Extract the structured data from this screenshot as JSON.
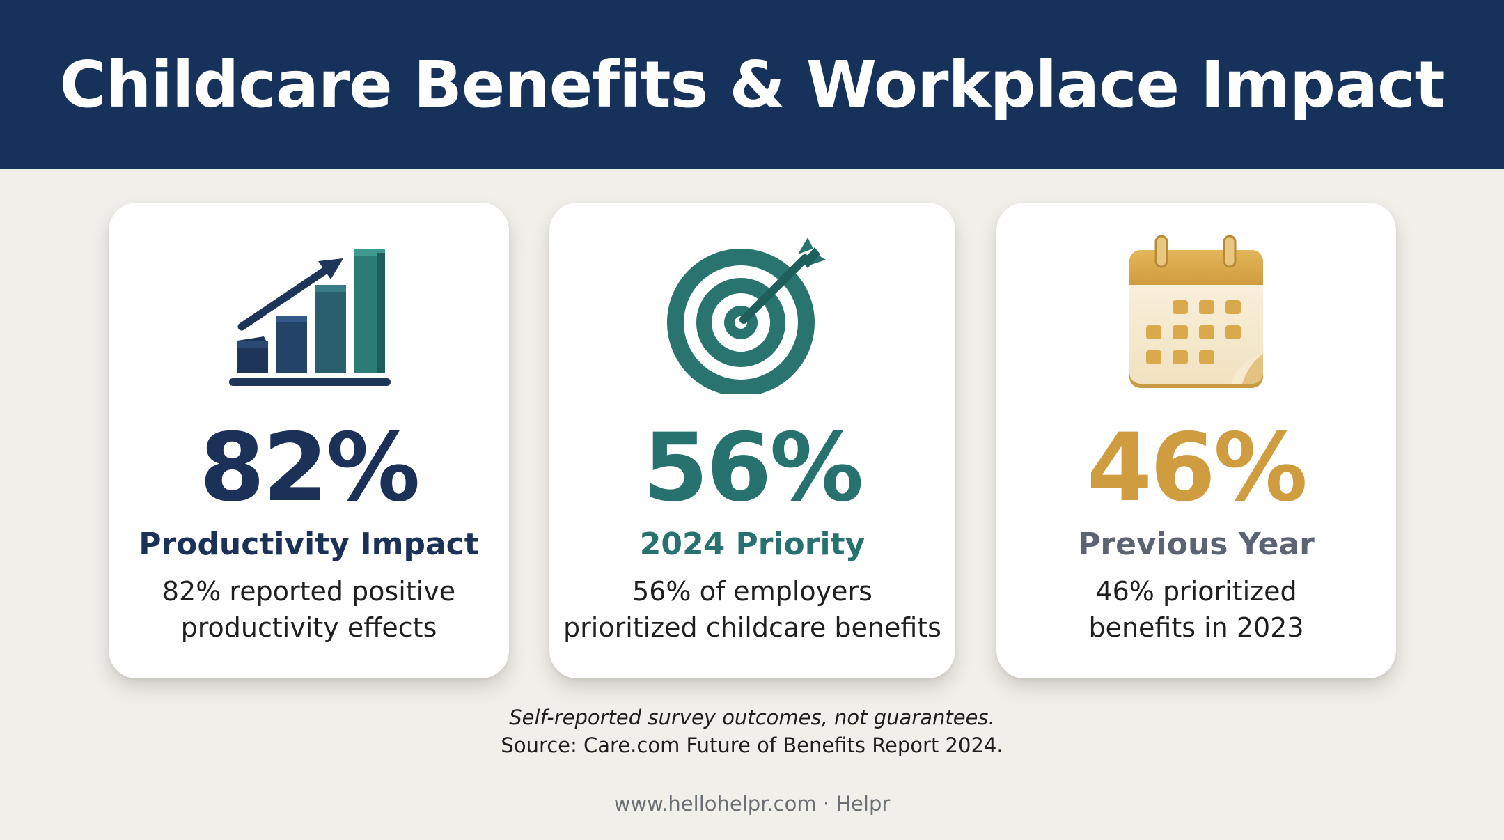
{
  "header": {
    "title": "Childcare Benefits & Workplace Impact"
  },
  "colors": {
    "header_bg": "#17325a",
    "navy": "#1c3157",
    "teal": "#27716e",
    "gold": "#cf9c3f",
    "slate": "#5c6473",
    "page_bg": "#f1efea"
  },
  "cards": [
    {
      "icon": "bar-chart-arrow-icon",
      "stat": "82%",
      "title": "Productivity Impact",
      "desc_line1": "82% reported positive",
      "desc_line2": "productivity effects"
    },
    {
      "icon": "target-arrow-icon",
      "stat": "56%",
      "title": "2024 Priority",
      "desc_line1": "56% of employers",
      "desc_line2": "prioritized childcare benefits"
    },
    {
      "icon": "calendar-icon",
      "stat": "46%",
      "title": "Previous Year",
      "desc_line1": "46% prioritized",
      "desc_line2": "benefits in 2023"
    }
  ],
  "note": {
    "disclaimer": "Self-reported survey outcomes, not guarantees.",
    "source": "Source: Care.com Future of Benefits Report 2024."
  },
  "footer": {
    "text": "www.hellohelpr.com · Helpr"
  }
}
